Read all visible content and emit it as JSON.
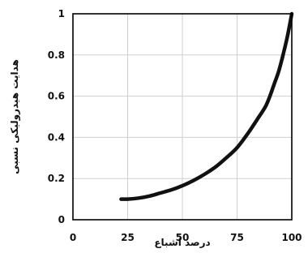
{
  "chart_data": {
    "type": "line",
    "title": "",
    "xlabel": "درصد اشباع",
    "ylabel": "هدایت هیدرولیکی نسبی",
    "xlim": [
      0,
      100
    ],
    "ylim": [
      0,
      1
    ],
    "x_ticks": [
      "0",
      "25",
      "50",
      "75",
      "100"
    ],
    "y_ticks": [
      "0",
      "0.2",
      "0.4",
      "0.6",
      "0.8",
      "1"
    ],
    "grid": true,
    "series": [
      {
        "color": "#111111",
        "x": [
          22,
          25,
          30,
          35,
          40,
          45,
          50,
          55,
          60,
          65,
          70,
          75,
          80,
          85,
          88,
          90,
          92,
          94,
          96,
          98,
          100
        ],
        "y": [
          0.1,
          0.1,
          0.105,
          0.115,
          0.13,
          0.145,
          0.165,
          0.19,
          0.22,
          0.255,
          0.3,
          0.35,
          0.42,
          0.5,
          0.55,
          0.6,
          0.66,
          0.72,
          0.8,
          0.89,
          1.0
        ]
      }
    ]
  }
}
